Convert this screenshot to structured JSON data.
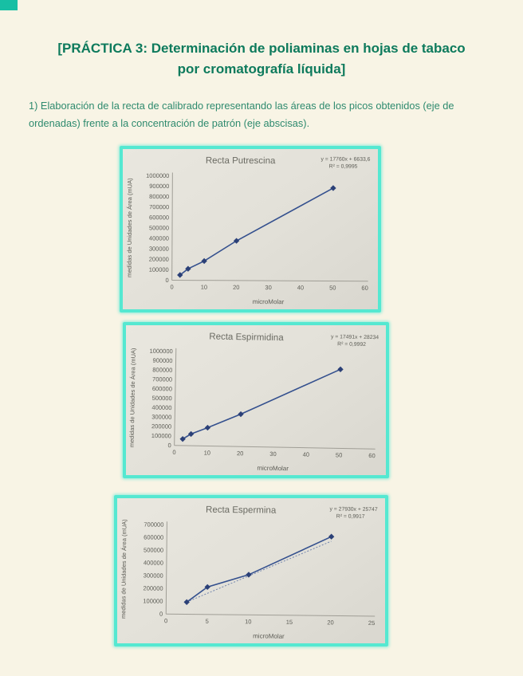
{
  "page": {
    "title_line1": "[PRÁCTICA 3: Determinación de poliaminas en hojas de tabaco",
    "title_line2": "por cromatografía líquida]",
    "intro_text": "1) Elaboración de la recta de calibrado representando las áreas de los picos obtenidos (eje de ordenadas) frente a la concentración de patrón (eje abscisas)."
  },
  "colors": {
    "title_green": "#0d7a5c",
    "body_green": "#2e8a6e",
    "card_border": "#55e8d1",
    "corner_teal": "#17bfa4",
    "line_blue": "#34508e",
    "marker_blue": "#2b4077",
    "axis_gray": "#a09e96",
    "chart_text": "#5c5c55"
  },
  "chart_data": [
    {
      "type": "scatter-line",
      "title": "Recta Putrescina",
      "equation": "y = 17760x + 6633,6",
      "r_squared": "R² = 0,9995",
      "xlabel": "microMolar",
      "ylabel": "medidas de Unidades de Área  (mUA)",
      "xlim": [
        0,
        60
      ],
      "ylim": [
        0,
        1000000
      ],
      "x_ticks": [
        0,
        10,
        20,
        30,
        40,
        50,
        60
      ],
      "y_ticks": [
        0,
        100000,
        200000,
        300000,
        400000,
        500000,
        600000,
        700000,
        800000,
        900000,
        1000000
      ],
      "points": [
        [
          2.5,
          50000
        ],
        [
          5,
          110000
        ],
        [
          10,
          185000
        ],
        [
          20,
          380000
        ],
        [
          50,
          890000
        ]
      ],
      "trend": {
        "slope": 17760,
        "intercept": 6633.6,
        "show": false
      },
      "legend": null,
      "grid": false
    },
    {
      "type": "scatter-line",
      "title": "Recta Espirmidina",
      "equation": "y = 17491x + 28234",
      "r_squared": "R² = 0,9992",
      "xlabel": "microMolar",
      "ylabel": "medidas de Unidades de Área  (mUA)",
      "xlim": [
        0,
        60
      ],
      "ylim": [
        0,
        1000000
      ],
      "x_ticks": [
        0,
        10,
        20,
        30,
        40,
        50,
        60
      ],
      "y_ticks": [
        0,
        100000,
        200000,
        300000,
        400000,
        500000,
        600000,
        700000,
        800000,
        900000,
        1000000
      ],
      "points": [
        [
          2.5,
          70000
        ],
        [
          5,
          125000
        ],
        [
          10,
          195000
        ],
        [
          20,
          345000
        ],
        [
          50,
          840000
        ]
      ],
      "trend": {
        "slope": 17491,
        "intercept": 28234,
        "show": false
      },
      "legend": null,
      "grid": false
    },
    {
      "type": "scatter-line",
      "title": "Recta Espermina",
      "equation": "y = 27930x + 25747",
      "r_squared": "R² = 0,9917",
      "xlabel": "microMolar",
      "ylabel": "medidas de Unidades de Área  (mUA)",
      "xlim": [
        0,
        25
      ],
      "ylim": [
        0,
        700000
      ],
      "x_ticks": [
        0,
        5,
        10,
        15,
        20,
        25
      ],
      "y_ticks": [
        0,
        100000,
        200000,
        300000,
        400000,
        500000,
        600000,
        700000
      ],
      "points": [
        [
          2.5,
          95000
        ],
        [
          5,
          215000
        ],
        [
          10,
          315000
        ],
        [
          20,
          620000
        ]
      ],
      "trend": {
        "slope": 27930,
        "intercept": 25747,
        "show": true
      },
      "legend": null,
      "grid": false
    }
  ]
}
